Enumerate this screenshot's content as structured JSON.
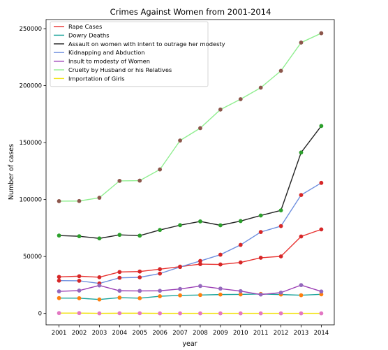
{
  "chart_data": {
    "type": "line",
    "title": "Crimes Against Women from 2001-2014",
    "xlabel": "year",
    "ylabel": "Number of cases",
    "x": [
      2001,
      2002,
      2003,
      2004,
      2005,
      2006,
      2007,
      2008,
      2009,
      2010,
      2011,
      2012,
      2013,
      2014
    ],
    "yticks": [
      0,
      50000,
      100000,
      150000,
      200000,
      250000
    ],
    "ylim": [
      -10000,
      258000
    ],
    "legend_position": "top-left",
    "grid": false,
    "series": [
      {
        "name": "Rape Cases",
        "color": "#e8312f",
        "marker_color": "#d62728",
        "values": [
          32100,
          32700,
          31800,
          36400,
          36800,
          38900,
          41100,
          43300,
          43000,
          44800,
          48900,
          50100,
          67600,
          73800
        ]
      },
      {
        "name": "Dowry Deaths",
        "color": "#1aa39a",
        "marker_color": "#ff7f0e",
        "values": [
          13500,
          13400,
          12300,
          13900,
          13400,
          15100,
          15900,
          16200,
          16600,
          16700,
          17100,
          16600,
          16000,
          16800
        ]
      },
      {
        "name": "Assault on women with intent to outrage her modesty",
        "color": "#222222",
        "marker_color": "#2ca02c",
        "values": [
          68400,
          67800,
          65900,
          69000,
          68300,
          73300,
          77500,
          80800,
          77400,
          81100,
          86000,
          90500,
          141300,
          164600
        ]
      },
      {
        "name": "Kidnapping and Abduction",
        "color": "#6f8fde",
        "marker_color": "#d62728",
        "values": [
          28800,
          28700,
          26400,
          31300,
          31700,
          35000,
          40800,
          46100,
          51600,
          60200,
          71500,
          76700,
          104000,
          114600
        ]
      },
      {
        "name": "Insult to modesty of Women",
        "color": "#9b3fb5",
        "marker_color": "#9467bd",
        "values": [
          19400,
          20100,
          24600,
          19900,
          19800,
          19900,
          21500,
          24100,
          21800,
          19600,
          16600,
          18300,
          24900,
          19300
        ]
      },
      {
        "name": "Cruelty by Husband or his Relatives",
        "color": "#90ee90",
        "marker_color": "#8c564b",
        "values": [
          98600,
          98700,
          101600,
          116400,
          116600,
          126400,
          151800,
          162700,
          179000,
          188100,
          198200,
          213000,
          237800,
          246000
        ]
      },
      {
        "name": "Importation of Girls",
        "color": "#f2e311",
        "marker_color": "#e377c2",
        "values": [
          300,
          300,
          100,
          200,
          200,
          100,
          100,
          100,
          100,
          100,
          100,
          100,
          100,
          100
        ]
      }
    ]
  }
}
